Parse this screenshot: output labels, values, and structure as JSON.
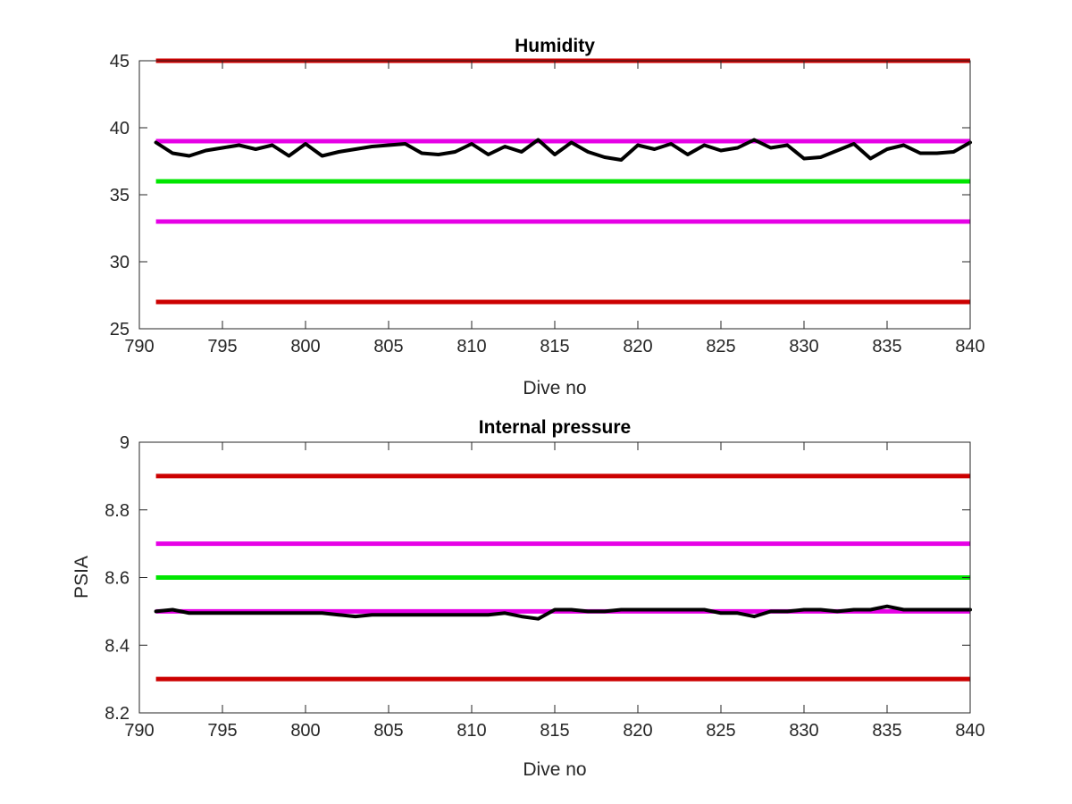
{
  "chart_data": [
    {
      "type": "line",
      "title": "Humidity",
      "xlabel": "Dive no",
      "ylabel": "",
      "xlim": [
        790,
        840
      ],
      "ylim": [
        25,
        45
      ],
      "xticks": [
        "790",
        "795",
        "800",
        "805",
        "810",
        "815",
        "820",
        "825",
        "830",
        "835",
        "840"
      ],
      "yticks": [
        "25",
        "30",
        "35",
        "40",
        "45"
      ],
      "grid": false,
      "hlines": [
        {
          "y": 45,
          "color": "#cc0000"
        },
        {
          "y": 39,
          "color": "#e600e6"
        },
        {
          "y": 36,
          "color": "#00e600"
        },
        {
          "y": 33,
          "color": "#e600e6"
        },
        {
          "y": 27,
          "color": "#cc0000"
        }
      ],
      "series": [
        {
          "color": "#000000",
          "x": [
            791,
            792,
            793,
            794,
            795,
            796,
            797,
            798,
            799,
            800,
            801,
            802,
            803,
            804,
            805,
            806,
            807,
            808,
            809,
            810,
            811,
            812,
            813,
            814,
            815,
            816,
            817,
            818,
            819,
            820,
            821,
            822,
            823,
            824,
            825,
            826,
            827,
            828,
            829,
            830,
            831,
            832,
            833,
            834,
            835,
            836,
            837,
            838,
            839,
            840
          ],
          "y": [
            38.9,
            38.1,
            37.9,
            38.3,
            38.5,
            38.7,
            38.4,
            38.7,
            37.9,
            38.8,
            37.9,
            38.2,
            38.4,
            38.6,
            38.7,
            38.8,
            38.1,
            38.0,
            38.2,
            38.8,
            38.0,
            38.6,
            38.2,
            39.1,
            38.0,
            38.9,
            38.2,
            37.8,
            37.6,
            38.7,
            38.4,
            38.8,
            38.0,
            38.7,
            38.3,
            38.5,
            39.1,
            38.5,
            38.7,
            37.7,
            37.8,
            38.3,
            38.8,
            37.7,
            38.4,
            38.7,
            38.1,
            38.1,
            38.2,
            38.9
          ]
        }
      ]
    },
    {
      "type": "line",
      "title": "Internal pressure",
      "xlabel": "Dive no",
      "ylabel": "PSIA",
      "xlim": [
        790,
        840
      ],
      "ylim": [
        8.2,
        9.0
      ],
      "xticks": [
        "790",
        "795",
        "800",
        "805",
        "810",
        "815",
        "820",
        "825",
        "830",
        "835",
        "840"
      ],
      "yticks": [
        "8.2",
        "8.4",
        "8.6",
        "8.8",
        "9"
      ],
      "grid": false,
      "hlines": [
        {
          "y": 8.9,
          "color": "#cc0000"
        },
        {
          "y": 8.7,
          "color": "#e600e6"
        },
        {
          "y": 8.6,
          "color": "#00e600"
        },
        {
          "y": 8.5,
          "color": "#e600e6"
        },
        {
          "y": 8.3,
          "color": "#cc0000"
        }
      ],
      "series": [
        {
          "color": "#000000",
          "x": [
            791,
            792,
            793,
            794,
            795,
            796,
            797,
            798,
            799,
            800,
            801,
            802,
            803,
            804,
            805,
            806,
            807,
            808,
            809,
            810,
            811,
            812,
            813,
            814,
            815,
            816,
            817,
            818,
            819,
            820,
            821,
            822,
            823,
            824,
            825,
            826,
            827,
            828,
            829,
            830,
            831,
            832,
            833,
            834,
            835,
            836,
            837,
            838,
            839,
            840
          ],
          "y": [
            8.5,
            8.505,
            8.495,
            8.495,
            8.495,
            8.495,
            8.495,
            8.495,
            8.495,
            8.495,
            8.495,
            8.49,
            8.485,
            8.49,
            8.49,
            8.49,
            8.49,
            8.49,
            8.49,
            8.49,
            8.49,
            8.495,
            8.485,
            8.478,
            8.505,
            8.505,
            8.5,
            8.5,
            8.505,
            8.505,
            8.505,
            8.505,
            8.505,
            8.505,
            8.495,
            8.495,
            8.485,
            8.5,
            8.5,
            8.505,
            8.505,
            8.5,
            8.505,
            8.505,
            8.515,
            8.505,
            8.505,
            8.505,
            8.505,
            8.505
          ]
        }
      ]
    }
  ]
}
